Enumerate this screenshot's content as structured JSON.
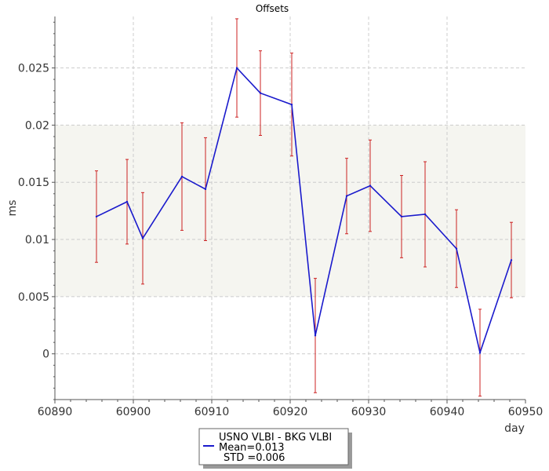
{
  "chart_data": {
    "type": "line",
    "title": "Offsets",
    "xlabel": "day",
    "ylabel": "ms",
    "xlim": [
      60890,
      60950
    ],
    "ylim": [
      -0.004,
      0.0295
    ],
    "x_ticks": [
      60890,
      60900,
      60910,
      60920,
      60930,
      60940,
      60950
    ],
    "x_tick_labels": [
      "60890",
      "60900",
      "60910",
      "60920",
      "60930",
      "60940",
      "60950"
    ],
    "y_ticks": [
      0,
      0.005,
      0.01,
      0.015,
      0.02,
      0.025
    ],
    "y_tick_labels": [
      "0",
      "0.005",
      "0.01",
      "0.015",
      "0.02",
      "0.025"
    ],
    "grid": true,
    "shaded_band": [
      0.005,
      0.02
    ],
    "colors": {
      "line": "#1a1acc",
      "error_bar": "#cc2222",
      "band": "#f5f5f0",
      "grid": "#cccccc"
    },
    "series": [
      {
        "name": "USNO VLBI - BKG VLBI",
        "x": [
          60895.3,
          60899.2,
          60901.2,
          60906.2,
          60909.2,
          60913.2,
          60916.2,
          60920.2,
          60923.2,
          60927.2,
          60930.2,
          60934.2,
          60937.2,
          60941.2,
          60944.2,
          60948.2
        ],
        "y": [
          0.012,
          0.0133,
          0.0101,
          0.0155,
          0.0144,
          0.025,
          0.0228,
          0.0218,
          0.0016,
          0.0138,
          0.0147,
          0.012,
          0.0122,
          0.0092,
          0.0001,
          0.0082
        ],
        "err": [
          0.004,
          0.0037,
          0.004,
          0.0047,
          0.0045,
          0.0043,
          0.0037,
          0.0045,
          0.005,
          0.0033,
          0.004,
          0.0036,
          0.0046,
          0.0034,
          0.0038,
          0.0033
        ]
      }
    ],
    "legend": {
      "placement": "bottom-center",
      "series_label": "USNO VLBI - BKG VLBI",
      "mean_text": "Mean=0.013",
      "std_text": "STD =0.006"
    }
  }
}
